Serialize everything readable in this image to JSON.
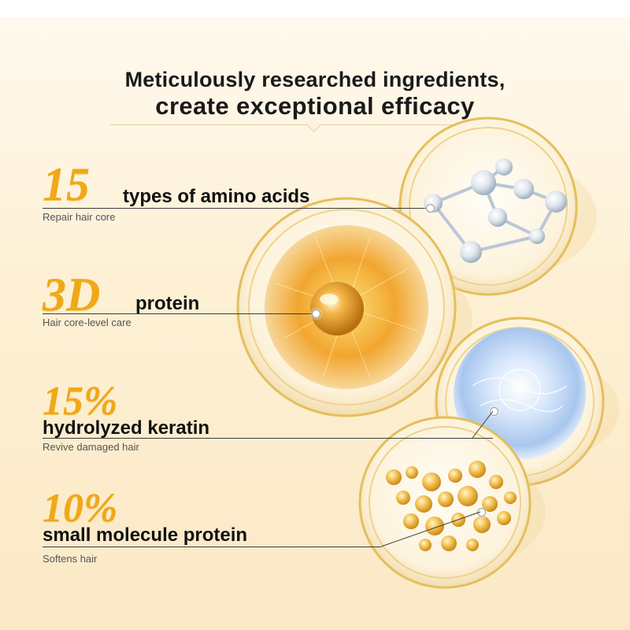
{
  "header": {
    "line1": "Meticulously researched ingredients,",
    "line2": "create exceptional efficacy"
  },
  "ingredients": [
    {
      "number": "15",
      "label": "types of amino acids",
      "caption": "Repair hair core",
      "visual": "amino-acid-molecule-dish"
    },
    {
      "number": "3D",
      "label": "protein",
      "caption": "Hair core-level care",
      "visual": "golden-protein-dish"
    },
    {
      "number": "15%",
      "label": "hydrolyzed keratin",
      "caption": "Revive damaged hair",
      "visual": "blue-keratin-dish"
    },
    {
      "number": "10%",
      "label": "small molecule protein",
      "caption": "Softens hair",
      "visual": "golden-droplets-dish"
    }
  ],
  "colors": {
    "accent_gold": "#f0a818",
    "text_dark": "#111111",
    "caption_gray": "#555555",
    "background": "#fdf0d4"
  }
}
